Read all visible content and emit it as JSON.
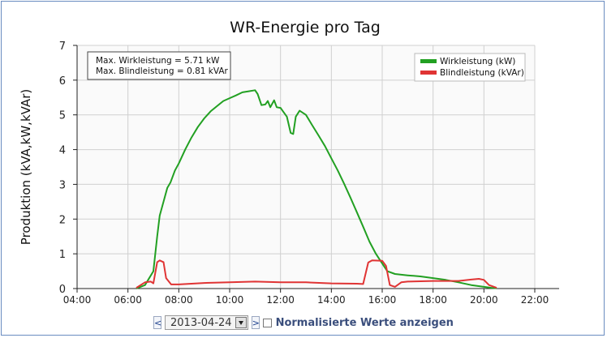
{
  "chart_data": {
    "type": "line",
    "title": "WR-Energie pro Tag",
    "xlabel": "",
    "ylabel": "Produktion (kVA,kW,kVAr)",
    "xlim": [
      4,
      22
    ],
    "ylim": [
      0,
      7
    ],
    "x_tick_labels": [
      "04:00",
      "06:00",
      "08:00",
      "10:00",
      "12:00",
      "14:00",
      "16:00",
      "18:00",
      "20:00",
      "22:00"
    ],
    "y_tick_labels": [
      "0",
      "1",
      "2",
      "3",
      "4",
      "5",
      "6",
      "7"
    ],
    "grid": true,
    "legend_position": "top-right",
    "annotations": [
      "Max. Wirkleistung = 5.71 kW",
      "Max. Blindleistung = 0.81 kVAr"
    ],
    "series": [
      {
        "name": "Wirkleistung (kW)",
        "color": "#22a022",
        "x": [
          6.33,
          6.67,
          7.0,
          7.15,
          7.25,
          7.4,
          7.55,
          7.67,
          7.85,
          8.0,
          8.25,
          8.5,
          8.75,
          9.0,
          9.25,
          9.5,
          9.75,
          10.0,
          10.25,
          10.5,
          10.75,
          11.0,
          11.1,
          11.25,
          11.4,
          11.5,
          11.6,
          11.75,
          11.85,
          12.0,
          12.1,
          12.25,
          12.4,
          12.5,
          12.6,
          12.75,
          13.0,
          13.25,
          13.5,
          13.75,
          14.0,
          14.25,
          14.5,
          14.75,
          15.0,
          15.25,
          15.5,
          15.75,
          16.0,
          16.2,
          16.5,
          16.75,
          17.0,
          17.5,
          18.0,
          18.5,
          19.0,
          19.5,
          20.0,
          20.3,
          20.5
        ],
        "y": [
          0.0,
          0.1,
          0.5,
          1.5,
          2.1,
          2.5,
          2.9,
          3.05,
          3.4,
          3.6,
          4.0,
          4.35,
          4.65,
          4.9,
          5.1,
          5.25,
          5.4,
          5.48,
          5.56,
          5.65,
          5.68,
          5.71,
          5.6,
          5.28,
          5.3,
          5.4,
          5.22,
          5.42,
          5.22,
          5.2,
          5.1,
          4.95,
          4.48,
          4.45,
          4.95,
          5.12,
          5.0,
          4.7,
          4.4,
          4.1,
          3.75,
          3.4,
          3.02,
          2.62,
          2.2,
          1.78,
          1.35,
          1.0,
          0.72,
          0.5,
          0.42,
          0.4,
          0.38,
          0.35,
          0.3,
          0.25,
          0.18,
          0.1,
          0.05,
          0.02,
          0.01
        ]
      },
      {
        "name": "Blindleistung (kVAr)",
        "color": "#e03434",
        "x": [
          6.33,
          6.67,
          6.9,
          7.0,
          7.15,
          7.25,
          7.4,
          7.5,
          7.7,
          8.0,
          9.0,
          10.0,
          11.0,
          12.0,
          13.0,
          14.0,
          15.0,
          15.25,
          15.45,
          15.6,
          16.0,
          16.15,
          16.3,
          16.5,
          16.75,
          17.0,
          18.0,
          19.0,
          19.5,
          19.8,
          20.0,
          20.2,
          20.5
        ],
        "y": [
          0.02,
          0.18,
          0.2,
          0.15,
          0.76,
          0.81,
          0.76,
          0.3,
          0.12,
          0.12,
          0.16,
          0.18,
          0.2,
          0.18,
          0.18,
          0.15,
          0.14,
          0.13,
          0.75,
          0.81,
          0.8,
          0.65,
          0.1,
          0.05,
          0.18,
          0.2,
          0.22,
          0.22,
          0.26,
          0.28,
          0.25,
          0.1,
          0.02
        ]
      }
    ]
  },
  "controls": {
    "prev_label": "<",
    "date_value": "2013-04-24",
    "next_label": ">",
    "normalize_label": "Normalisierte Werte anzeigen"
  }
}
